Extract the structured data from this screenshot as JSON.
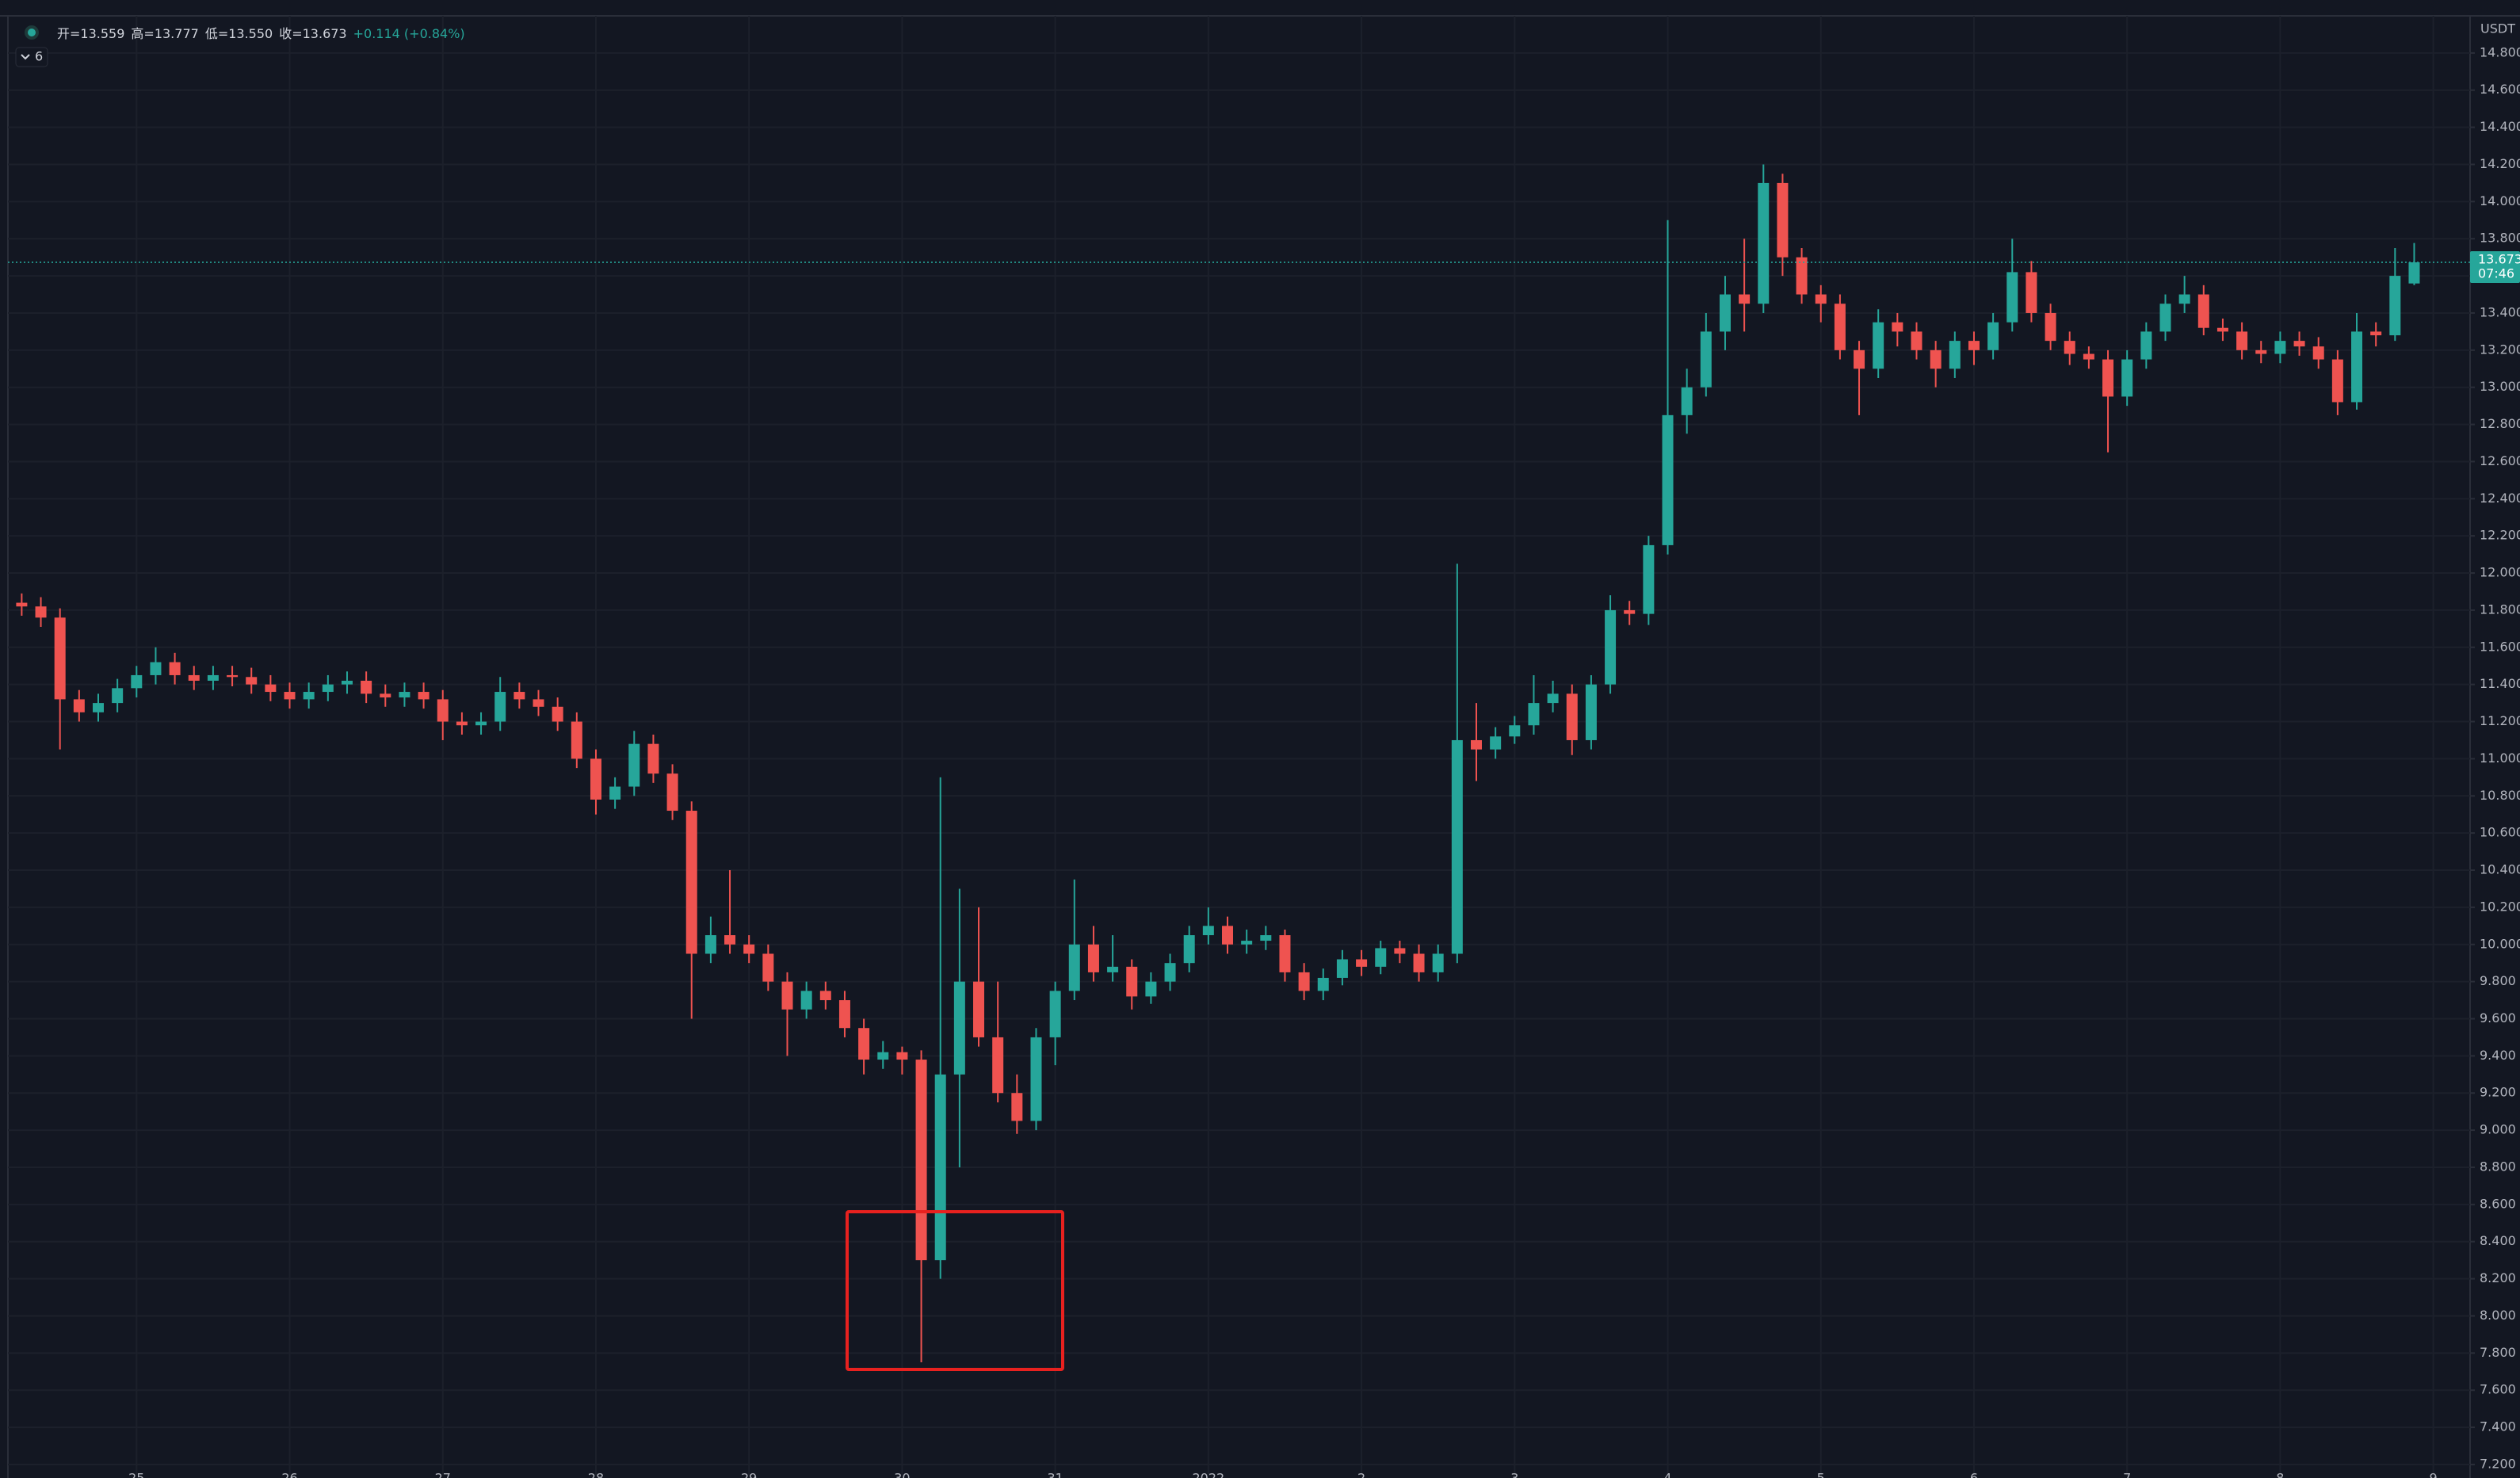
{
  "chart_data": {
    "type": "candlestick",
    "unit": "USDT",
    "indicator": "6",
    "info": [
      "开=13.559",
      "高=13.777",
      "低=13.550",
      "收=13.673",
      "+0.114 (+0.84%)"
    ],
    "last_price": {
      "value": 13.673,
      "label": "13.673"
    },
    "countdown": "07:46",
    "up_color": "#26a69a",
    "down_color": "#ef5350",
    "grid": true,
    "xlim": [
      -0.84,
      15.24
    ],
    "xticks": [
      {
        "value": 0,
        "label": "25"
      },
      {
        "value": 1,
        "label": "26"
      },
      {
        "value": 2,
        "label": "27"
      },
      {
        "value": 3,
        "label": "28"
      },
      {
        "value": 4,
        "label": "29"
      },
      {
        "value": 5,
        "label": "30"
      },
      {
        "value": 6,
        "label": "31"
      },
      {
        "value": 7,
        "label": "2022"
      },
      {
        "value": 8,
        "label": "2"
      },
      {
        "value": 9,
        "label": "3"
      },
      {
        "value": 10,
        "label": "4"
      },
      {
        "value": 11,
        "label": "5"
      },
      {
        "value": 12,
        "label": "6"
      },
      {
        "value": 13,
        "label": "7"
      },
      {
        "value": 14,
        "label": "8"
      },
      {
        "value": 15,
        "label": "9"
      }
    ],
    "ylim": [
      7.14,
      15.0
    ],
    "yticks": [
      {
        "value": 7.2,
        "label": "7.200"
      },
      {
        "value": 7.4,
        "label": "7.400"
      },
      {
        "value": 7.6,
        "label": "7.600"
      },
      {
        "value": 7.8,
        "label": "7.800"
      },
      {
        "value": 8.0,
        "label": "8.000"
      },
      {
        "value": 8.2,
        "label": "8.200"
      },
      {
        "value": 8.4,
        "label": "8.400"
      },
      {
        "value": 8.6,
        "label": "8.600"
      },
      {
        "value": 8.8,
        "label": "8.800"
      },
      {
        "value": 9.0,
        "label": "9.000"
      },
      {
        "value": 9.2,
        "label": "9.200"
      },
      {
        "value": 9.4,
        "label": "9.400"
      },
      {
        "value": 9.6,
        "label": "9.600"
      },
      {
        "value": 9.8,
        "label": "9.800"
      },
      {
        "value": 10.0,
        "label": "10.000"
      },
      {
        "value": 10.2,
        "label": "10.200"
      },
      {
        "value": 10.4,
        "label": "10.400"
      },
      {
        "value": 10.6,
        "label": "10.600"
      },
      {
        "value": 10.8,
        "label": "10.800"
      },
      {
        "value": 11.0,
        "label": "11.000"
      },
      {
        "value": 11.2,
        "label": "11.200"
      },
      {
        "value": 11.4,
        "label": "11.400"
      },
      {
        "value": 11.6,
        "label": "11.600"
      },
      {
        "value": 11.8,
        "label": "11.800"
      },
      {
        "value": 12.0,
        "label": "12.000"
      },
      {
        "value": 12.2,
        "label": "12.200"
      },
      {
        "value": 12.4,
        "label": "12.400"
      },
      {
        "value": 12.6,
        "label": "12.600"
      },
      {
        "value": 12.8,
        "label": "12.800"
      },
      {
        "value": 13.0,
        "label": "13.000"
      },
      {
        "value": 13.2,
        "label": "13.200"
      },
      {
        "value": 13.4,
        "label": "13.400"
      },
      {
        "value": 13.6,
        "label": "13.600"
      },
      {
        "value": 13.8,
        "label": "13.800"
      },
      {
        "value": 14.0,
        "label": "14.000"
      },
      {
        "value": 14.2,
        "label": "14.200"
      },
      {
        "value": 14.4,
        "label": "14.400"
      },
      {
        "value": 14.6,
        "label": "14.600"
      },
      {
        "value": 14.8,
        "label": "14.800"
      }
    ],
    "x": [
      -0.75,
      -0.625,
      -0.5,
      -0.375,
      -0.25,
      -0.125,
      0,
      0.125,
      0.25,
      0.375,
      0.5,
      0.625,
      0.75,
      0.875,
      1,
      1.125,
      1.25,
      1.375,
      1.5,
      1.625,
      1.75,
      1.875,
      2,
      2.125,
      2.25,
      2.375,
      2.5,
      2.625,
      2.75,
      2.875,
      3,
      3.125,
      3.25,
      3.375,
      3.5,
      3.625,
      3.75,
      3.875,
      4,
      4.125,
      4.25,
      4.375,
      4.5,
      4.625,
      4.75,
      4.875,
      5,
      5.125,
      5.25,
      5.375,
      5.5,
      5.625,
      5.75,
      5.875,
      6,
      6.125,
      6.25,
      6.375,
      6.5,
      6.625,
      6.75,
      6.875,
      7,
      7.125,
      7.25,
      7.375,
      7.5,
      7.625,
      7.75,
      7.875,
      8,
      8.125,
      8.25,
      8.375,
      8.5,
      8.625,
      8.75,
      8.875,
      9,
      9.125,
      9.25,
      9.375,
      9.5,
      9.625,
      9.75,
      9.875,
      10,
      10.125,
      10.25,
      10.375,
      10.5,
      10.625,
      10.75,
      10.875,
      11,
      11.125,
      11.25,
      11.375,
      11.5,
      11.625,
      11.75,
      11.875,
      12,
      12.125,
      12.25,
      12.375,
      12.5,
      12.625,
      12.75,
      12.875,
      13,
      13.125,
      13.25,
      13.375,
      13.5,
      13.625,
      13.75,
      13.875,
      14,
      14.125,
      14.25,
      14.375,
      14.5,
      14.625,
      14.75,
      14.875
    ],
    "open": [
      11.84,
      11.82,
      11.76,
      11.32,
      11.25,
      11.3,
      11.38,
      11.45,
      11.52,
      11.45,
      11.42,
      11.45,
      11.44,
      11.4,
      11.36,
      11.32,
      11.36,
      11.4,
      11.42,
      11.35,
      11.33,
      11.36,
      11.32,
      11.2,
      11.18,
      11.2,
      11.36,
      11.32,
      11.28,
      11.2,
      11.0,
      10.78,
      10.85,
      11.08,
      10.92,
      10.72,
      9.95,
      10.05,
      10.0,
      9.95,
      9.8,
      9.65,
      9.75,
      9.7,
      9.55,
      9.38,
      9.42,
      9.38,
      8.3,
      9.3,
      9.8,
      9.5,
      9.2,
      9.05,
      9.5,
      9.75,
      10.0,
      9.85,
      9.88,
      9.72,
      9.8,
      9.9,
      10.05,
      10.1,
      10.0,
      10.02,
      10.05,
      9.85,
      9.75,
      9.82,
      9.92,
      9.88,
      9.98,
      9.95,
      9.85,
      9.95,
      11.1,
      11.05,
      11.12,
      11.18,
      11.3,
      11.35,
      11.1,
      11.4,
      11.8,
      11.78,
      12.15,
      12.85,
      13.0,
      13.3,
      13.5,
      13.45,
      14.1,
      13.7,
      13.5,
      13.45,
      13.2,
      13.1,
      13.35,
      13.3,
      13.2,
      13.1,
      13.25,
      13.2,
      13.35,
      13.62,
      13.4,
      13.25,
      13.18,
      13.15,
      12.95,
      13.15,
      13.3,
      13.45,
      13.5,
      13.32,
      13.3,
      13.2,
      13.18,
      13.25,
      13.22,
      13.15,
      12.92,
      13.3,
      13.28,
      13.559
    ],
    "high": [
      11.89,
      11.87,
      11.81,
      11.37,
      11.35,
      11.43,
      11.5,
      11.6,
      11.57,
      11.5,
      11.5,
      11.5,
      11.49,
      11.45,
      11.41,
      11.41,
      11.45,
      11.47,
      11.47,
      11.4,
      11.41,
      11.41,
      11.37,
      11.25,
      11.25,
      11.44,
      11.41,
      11.37,
      11.33,
      11.25,
      11.05,
      10.9,
      11.15,
      11.13,
      10.97,
      10.77,
      10.15,
      10.4,
      10.05,
      10.0,
      9.85,
      9.8,
      9.8,
      9.75,
      9.6,
      9.48,
      9.45,
      9.43,
      10.9,
      10.3,
      10.2,
      9.8,
      9.3,
      9.55,
      9.8,
      10.35,
      10.1,
      10.05,
      9.92,
      9.85,
      9.95,
      10.1,
      10.2,
      10.15,
      10.08,
      10.1,
      10.08,
      9.9,
      9.87,
      9.97,
      9.97,
      10.02,
      10.02,
      10.0,
      10.0,
      12.05,
      11.3,
      11.17,
      11.23,
      11.45,
      11.42,
      11.4,
      11.45,
      11.88,
      11.85,
      12.2,
      13.9,
      13.1,
      13.4,
      13.6,
      13.8,
      14.2,
      14.15,
      13.75,
      13.55,
      13.5,
      13.25,
      13.42,
      13.4,
      13.35,
      13.25,
      13.3,
      13.3,
      13.4,
      13.8,
      13.68,
      13.45,
      13.3,
      13.22,
      13.2,
      13.2,
      13.35,
      13.5,
      13.6,
      13.55,
      13.37,
      13.35,
      13.25,
      13.3,
      13.3,
      13.27,
      13.2,
      13.4,
      13.35,
      13.75,
      13.777
    ],
    "low": [
      11.77,
      11.71,
      11.05,
      11.2,
      11.2,
      11.25,
      11.33,
      11.4,
      11.4,
      11.37,
      11.37,
      11.39,
      11.35,
      11.31,
      11.27,
      11.27,
      11.31,
      11.35,
      11.3,
      11.28,
      11.28,
      11.27,
      11.1,
      11.13,
      11.13,
      11.15,
      11.27,
      11.23,
      11.15,
      10.95,
      10.7,
      10.73,
      10.8,
      10.87,
      10.67,
      9.6,
      9.9,
      9.95,
      9.9,
      9.75,
      9.4,
      9.6,
      9.65,
      9.5,
      9.3,
      9.33,
      9.3,
      7.75,
      8.2,
      8.8,
      9.45,
      9.15,
      8.98,
      9.0,
      9.35,
      9.7,
      9.8,
      9.8,
      9.65,
      9.68,
      9.75,
      9.85,
      10.0,
      9.95,
      9.95,
      9.97,
      9.8,
      9.7,
      9.7,
      9.78,
      9.83,
      9.84,
      9.9,
      9.8,
      9.8,
      9.9,
      10.88,
      11.0,
      11.08,
      11.13,
      11.25,
      11.02,
      11.05,
      11.35,
      11.72,
      11.72,
      12.1,
      12.75,
      12.95,
      13.2,
      13.3,
      13.4,
      13.6,
      13.45,
      13.35,
      13.15,
      12.85,
      13.05,
      13.22,
      13.15,
      13.0,
      13.05,
      13.12,
      13.15,
      13.3,
      13.35,
      13.2,
      13.12,
      13.1,
      12.65,
      12.9,
      13.1,
      13.25,
      13.4,
      13.28,
      13.25,
      13.15,
      13.13,
      13.13,
      13.17,
      13.1,
      12.85,
      12.88,
      13.22,
      13.25,
      13.55
    ],
    "close": [
      11.82,
      11.76,
      11.32,
      11.25,
      11.3,
      11.38,
      11.45,
      11.52,
      11.45,
      11.42,
      11.45,
      11.44,
      11.4,
      11.36,
      11.32,
      11.36,
      11.4,
      11.42,
      11.35,
      11.33,
      11.36,
      11.32,
      11.2,
      11.18,
      11.2,
      11.36,
      11.32,
      11.28,
      11.2,
      11.0,
      10.78,
      10.85,
      11.08,
      10.92,
      10.72,
      9.95,
      10.05,
      10.0,
      9.95,
      9.8,
      9.65,
      9.75,
      9.7,
      9.55,
      9.38,
      9.42,
      9.38,
      8.3,
      9.3,
      9.8,
      9.5,
      9.2,
      9.05,
      9.5,
      9.75,
      10.0,
      9.85,
      9.88,
      9.72,
      9.8,
      9.9,
      10.05,
      10.1,
      10.0,
      10.02,
      10.05,
      9.85,
      9.75,
      9.82,
      9.92,
      9.88,
      9.98,
      9.95,
      9.85,
      9.95,
      11.1,
      11.05,
      11.12,
      11.18,
      11.3,
      11.35,
      11.1,
      11.4,
      11.8,
      11.78,
      12.15,
      12.85,
      13.0,
      13.3,
      13.5,
      13.45,
      14.1,
      13.7,
      13.5,
      13.45,
      13.2,
      13.1,
      13.35,
      13.3,
      13.2,
      13.1,
      13.25,
      13.2,
      13.35,
      13.62,
      13.4,
      13.25,
      13.18,
      13.15,
      12.95,
      13.15,
      13.3,
      13.45,
      13.5,
      13.32,
      13.3,
      13.2,
      13.18,
      13.25,
      13.22,
      13.15,
      12.92,
      13.3,
      13.28,
      13.6,
      13.673
    ]
  }
}
